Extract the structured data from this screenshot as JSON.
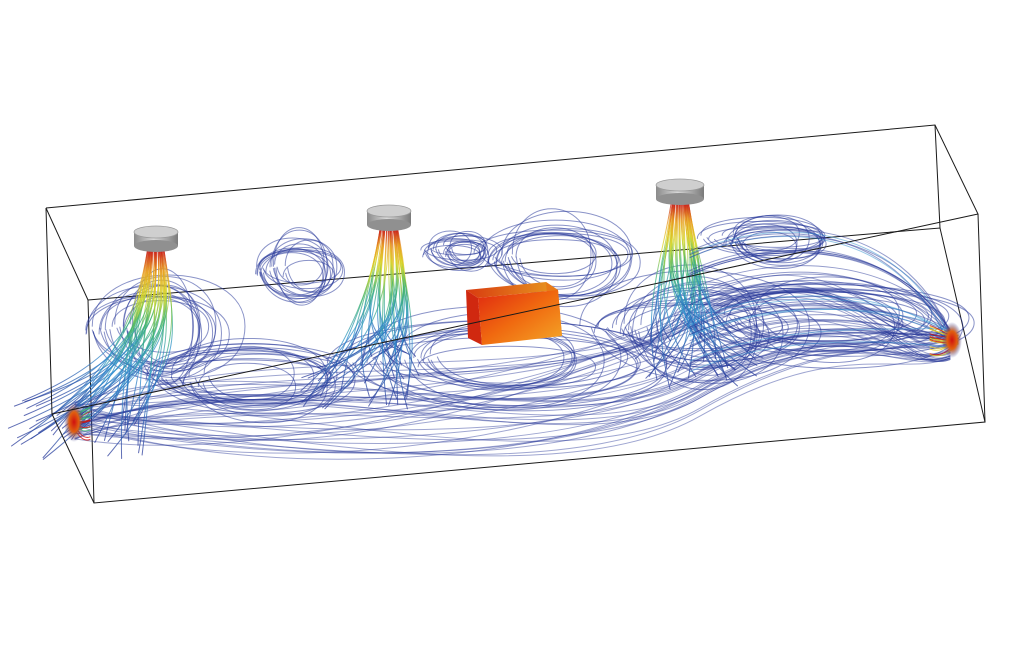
{
  "scene": {
    "background": "#ffffff",
    "frame_color": "#1a1a1a",
    "streamline_colors": {
      "low": "#2a3a9a",
      "mid_low": "#2f8fd0",
      "mid": "#3cb371",
      "mid_high": "#e8d020",
      "high": "#d01010"
    },
    "inlet_color": "#b8b8b8",
    "obstacle_colors": [
      "#e02010",
      "#f08010",
      "#f4a828"
    ],
    "objects": [
      {
        "name": "inlet-1",
        "type": "cylinder"
      },
      {
        "name": "inlet-2",
        "type": "cylinder"
      },
      {
        "name": "inlet-3",
        "type": "cylinder"
      },
      {
        "name": "heat-source-block",
        "type": "box"
      },
      {
        "name": "outlet-left",
        "type": "vent"
      },
      {
        "name": "outlet-right",
        "type": "vent"
      }
    ]
  }
}
